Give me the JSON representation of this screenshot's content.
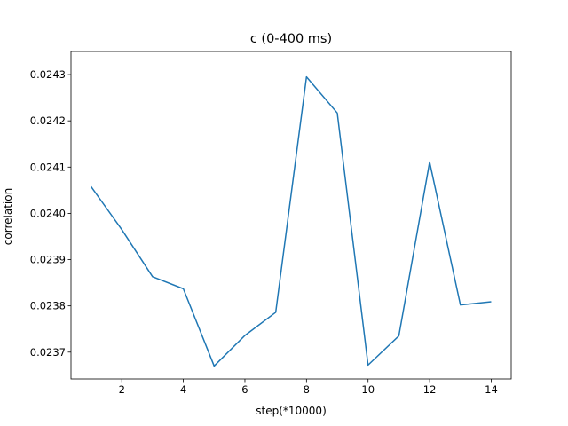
{
  "chart_data": {
    "type": "line",
    "title": "c (0-400 ms)",
    "xlabel": "step(*10000)",
    "ylabel": "correlation",
    "xlim": [
      0.35,
      14.65
    ],
    "ylim": [
      0.023642,
      0.02435
    ],
    "x_ticks": [
      2,
      4,
      6,
      8,
      10,
      12,
      14
    ],
    "y_ticks": [
      0.0237,
      0.0238,
      0.0239,
      0.024,
      0.0241,
      0.0242,
      0.0243
    ],
    "y_tick_labels": [
      "0.0237",
      "0.0238",
      "0.0239",
      "0.0240",
      "0.0241",
      "0.0242",
      "0.0243"
    ],
    "grid": false,
    "series": [
      {
        "color": "#1f77b4",
        "x": [
          1,
          2,
          3,
          4,
          5,
          6,
          7,
          8,
          9,
          10,
          11,
          12,
          13,
          14
        ],
        "values": [
          0.024058,
          0.023965,
          0.023863,
          0.023837,
          0.02367,
          0.023736,
          0.023786,
          0.024295,
          0.024217,
          0.023672,
          0.023735,
          0.024111,
          0.023802,
          0.023809
        ]
      }
    ]
  }
}
